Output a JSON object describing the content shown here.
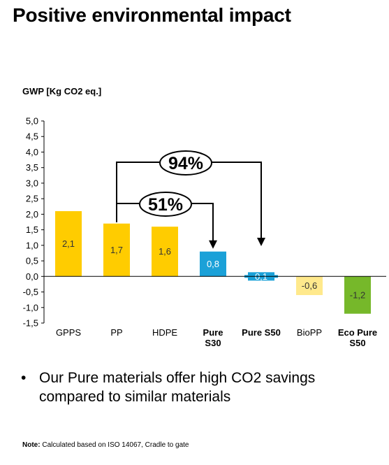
{
  "title": "Positive environmental impact",
  "chart_data": {
    "type": "bar",
    "ylabel": "GWP [Kg CO2 eq.]",
    "ylim": [
      -1.5,
      5.0
    ],
    "yticks": [
      "5,0",
      "4,5",
      "4,0",
      "3,5",
      "3,0",
      "2,5",
      "2,0",
      "1,5",
      "1,0",
      "0,5",
      "0,0",
      "-0,5",
      "-1,0",
      "-1,5"
    ],
    "categories": [
      {
        "lines": [
          "GPPS"
        ],
        "bold": false
      },
      {
        "lines": [
          "PP"
        ],
        "bold": false
      },
      {
        "lines": [
          "HDPE"
        ],
        "bold": false
      },
      {
        "lines": [
          "Pure",
          "S30"
        ],
        "bold": true
      },
      {
        "lines": [
          "Pure S50"
        ],
        "bold": true
      },
      {
        "lines": [
          "BioPP"
        ],
        "bold": false
      },
      {
        "lines": [
          "Eco Pure",
          "S50"
        ],
        "bold": true
      }
    ],
    "values": [
      2.1,
      1.7,
      1.6,
      0.8,
      0.1,
      -0.6,
      -1.2
    ],
    "value_labels": [
      "2,1",
      "1,7",
      "1,6",
      "0,8",
      "0,1",
      "-0,6",
      "-1,2"
    ],
    "colors": [
      "#ffcc00",
      "#ffcc00",
      "#ffcc00",
      "#1ba1d8",
      "#1ba1d8",
      "#ffe98c",
      "#76b82a"
    ],
    "label_colors": [
      "#333333",
      "#333333",
      "#333333",
      "#ffffff",
      "#ffffff",
      "#333333",
      "#333333"
    ],
    "annotations": [
      {
        "text": "94%",
        "from": 1,
        "to": 4
      },
      {
        "text": "51%",
        "from": 1,
        "to": 3
      }
    ],
    "grid": false,
    "legend": "none"
  },
  "bullet": "Our Pure materials offer high CO2 savings compared to similar materials",
  "note_label": "Note:",
  "note_text": "Calculated based on ISO 14067, Cradle to gate"
}
